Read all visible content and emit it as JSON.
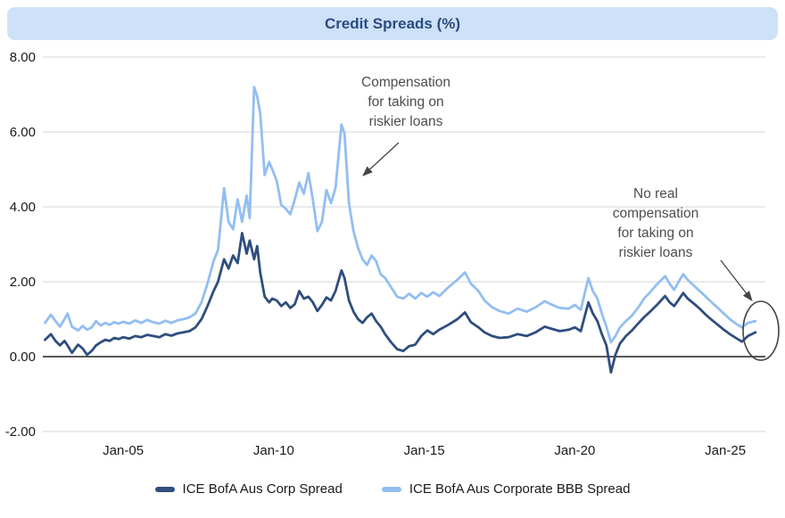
{
  "title": "Credit Spreads (%)",
  "colors": {
    "title_bg": "#CDE1F9",
    "title_text": "#2B4A7D",
    "corp_line": "#2F4E7E",
    "bbb_line": "#92BEF2",
    "gridline": "#D6D6D6",
    "zero_axis": "#3F3F3F",
    "tick_text": "#1A1A1A",
    "annotation_text": "#4D4D4D",
    "annotation_shape": "#454545"
  },
  "legend": [
    {
      "label": "ICE BofA Aus Corp Spread",
      "color_key": "corp_line"
    },
    {
      "label": "ICE BofA Aus Corporate BBB Spread",
      "color_key": "bbb_line"
    }
  ],
  "annotations": [
    {
      "name": "compensation-note",
      "lines": [
        "Compensation",
        "for taking on",
        "riskier loans"
      ]
    },
    {
      "name": "no-compensation-note",
      "lines": [
        "No real",
        "compensation",
        "for taking on",
        "riskier loans"
      ]
    }
  ],
  "chart_data": {
    "type": "line",
    "title": "Credit Spreads (%)",
    "xlabel": "",
    "ylabel": "",
    "grid": "horizontal",
    "x_domain": [
      2002.33,
      2026.33
    ],
    "ylim": [
      -2,
      8
    ],
    "yticks": [
      8,
      6,
      4,
      2,
      0,
      -2
    ],
    "xticks": [
      {
        "label": "Jan-05",
        "x": 2005
      },
      {
        "label": "Jan-10",
        "x": 2010
      },
      {
        "label": "Jan-15",
        "x": 2015
      },
      {
        "label": "Jan-20",
        "x": 2020
      },
      {
        "label": "Jan-25",
        "x": 2025
      }
    ],
    "legend_position": "bottom",
    "series": [
      {
        "name": "ICE BofA Aus Corp Spread",
        "color": "#2F4E7E",
        "points": [
          [
            2002.4,
            0.45
          ],
          [
            2002.6,
            0.6
          ],
          [
            2002.75,
            0.42
          ],
          [
            2002.9,
            0.3
          ],
          [
            2003.05,
            0.42
          ],
          [
            2003.15,
            0.3
          ],
          [
            2003.3,
            0.1
          ],
          [
            2003.5,
            0.32
          ],
          [
            2003.65,
            0.22
          ],
          [
            2003.8,
            0.05
          ],
          [
            2003.95,
            0.15
          ],
          [
            2004.1,
            0.3
          ],
          [
            2004.25,
            0.38
          ],
          [
            2004.4,
            0.45
          ],
          [
            2004.55,
            0.42
          ],
          [
            2004.7,
            0.5
          ],
          [
            2004.85,
            0.47
          ],
          [
            2005.0,
            0.52
          ],
          [
            2005.2,
            0.48
          ],
          [
            2005.4,
            0.55
          ],
          [
            2005.6,
            0.52
          ],
          [
            2005.8,
            0.58
          ],
          [
            2006.0,
            0.55
          ],
          [
            2006.2,
            0.52
          ],
          [
            2006.4,
            0.6
          ],
          [
            2006.6,
            0.56
          ],
          [
            2006.8,
            0.62
          ],
          [
            2007.0,
            0.65
          ],
          [
            2007.2,
            0.68
          ],
          [
            2007.4,
            0.78
          ],
          [
            2007.6,
            1.0
          ],
          [
            2007.8,
            1.35
          ],
          [
            2008.0,
            1.75
          ],
          [
            2008.15,
            2.0
          ],
          [
            2008.35,
            2.6
          ],
          [
            2008.5,
            2.35
          ],
          [
            2008.65,
            2.7
          ],
          [
            2008.8,
            2.5
          ],
          [
            2008.95,
            3.3
          ],
          [
            2009.1,
            2.75
          ],
          [
            2009.2,
            3.1
          ],
          [
            2009.35,
            2.6
          ],
          [
            2009.45,
            2.95
          ],
          [
            2009.55,
            2.25
          ],
          [
            2009.7,
            1.6
          ],
          [
            2009.85,
            1.45
          ],
          [
            2009.95,
            1.55
          ],
          [
            2010.1,
            1.5
          ],
          [
            2010.25,
            1.35
          ],
          [
            2010.4,
            1.45
          ],
          [
            2010.55,
            1.3
          ],
          [
            2010.7,
            1.4
          ],
          [
            2010.85,
            1.75
          ],
          [
            2011.0,
            1.55
          ],
          [
            2011.15,
            1.6
          ],
          [
            2011.3,
            1.45
          ],
          [
            2011.45,
            1.22
          ],
          [
            2011.6,
            1.38
          ],
          [
            2011.75,
            1.58
          ],
          [
            2011.9,
            1.5
          ],
          [
            2012.05,
            1.75
          ],
          [
            2012.25,
            2.3
          ],
          [
            2012.35,
            2.1
          ],
          [
            2012.5,
            1.5
          ],
          [
            2012.65,
            1.2
          ],
          [
            2012.8,
            1.0
          ],
          [
            2012.95,
            0.9
          ],
          [
            2013.1,
            1.05
          ],
          [
            2013.25,
            1.15
          ],
          [
            2013.4,
            0.95
          ],
          [
            2013.55,
            0.8
          ],
          [
            2013.7,
            0.6
          ],
          [
            2013.9,
            0.38
          ],
          [
            2014.1,
            0.2
          ],
          [
            2014.3,
            0.15
          ],
          [
            2014.5,
            0.28
          ],
          [
            2014.7,
            0.32
          ],
          [
            2014.9,
            0.55
          ],
          [
            2015.1,
            0.7
          ],
          [
            2015.3,
            0.6
          ],
          [
            2015.5,
            0.72
          ],
          [
            2015.8,
            0.85
          ],
          [
            2016.1,
            1.0
          ],
          [
            2016.35,
            1.18
          ],
          [
            2016.55,
            0.92
          ],
          [
            2016.8,
            0.78
          ],
          [
            2017.0,
            0.65
          ],
          [
            2017.25,
            0.55
          ],
          [
            2017.5,
            0.5
          ],
          [
            2017.8,
            0.52
          ],
          [
            2018.1,
            0.6
          ],
          [
            2018.4,
            0.55
          ],
          [
            2018.7,
            0.65
          ],
          [
            2019.0,
            0.8
          ],
          [
            2019.2,
            0.75
          ],
          [
            2019.5,
            0.68
          ],
          [
            2019.8,
            0.72
          ],
          [
            2020.0,
            0.78
          ],
          [
            2020.2,
            0.68
          ],
          [
            2020.45,
            1.45
          ],
          [
            2020.6,
            1.15
          ],
          [
            2020.75,
            0.95
          ],
          [
            2020.9,
            0.6
          ],
          [
            2021.05,
            0.3
          ],
          [
            2021.2,
            -0.42
          ],
          [
            2021.35,
            0.05
          ],
          [
            2021.5,
            0.35
          ],
          [
            2021.7,
            0.55
          ],
          [
            2021.9,
            0.7
          ],
          [
            2022.1,
            0.88
          ],
          [
            2022.3,
            1.05
          ],
          [
            2022.5,
            1.2
          ],
          [
            2022.75,
            1.4
          ],
          [
            2023.0,
            1.62
          ],
          [
            2023.15,
            1.45
          ],
          [
            2023.3,
            1.35
          ],
          [
            2023.45,
            1.52
          ],
          [
            2023.6,
            1.7
          ],
          [
            2023.75,
            1.55
          ],
          [
            2023.95,
            1.42
          ],
          [
            2024.15,
            1.28
          ],
          [
            2024.35,
            1.12
          ],
          [
            2024.55,
            0.98
          ],
          [
            2024.75,
            0.85
          ],
          [
            2024.95,
            0.72
          ],
          [
            2025.15,
            0.6
          ],
          [
            2025.35,
            0.5
          ],
          [
            2025.55,
            0.4
          ],
          [
            2025.75,
            0.55
          ],
          [
            2026.0,
            0.65
          ]
        ]
      },
      {
        "name": "ICE BofA Aus Corporate BBB Spread",
        "color": "#92BEF2",
        "points": [
          [
            2002.4,
            0.9
          ],
          [
            2002.6,
            1.12
          ],
          [
            2002.75,
            0.95
          ],
          [
            2002.9,
            0.8
          ],
          [
            2003.05,
            1.0
          ],
          [
            2003.15,
            1.15
          ],
          [
            2003.3,
            0.8
          ],
          [
            2003.5,
            0.7
          ],
          [
            2003.65,
            0.82
          ],
          [
            2003.8,
            0.72
          ],
          [
            2003.95,
            0.78
          ],
          [
            2004.1,
            0.95
          ],
          [
            2004.25,
            0.83
          ],
          [
            2004.4,
            0.9
          ],
          [
            2004.55,
            0.85
          ],
          [
            2004.7,
            0.92
          ],
          [
            2004.85,
            0.88
          ],
          [
            2005.0,
            0.93
          ],
          [
            2005.2,
            0.88
          ],
          [
            2005.4,
            0.97
          ],
          [
            2005.6,
            0.9
          ],
          [
            2005.8,
            0.98
          ],
          [
            2006.0,
            0.92
          ],
          [
            2006.2,
            0.88
          ],
          [
            2006.4,
            0.96
          ],
          [
            2006.6,
            0.9
          ],
          [
            2006.8,
            0.97
          ],
          [
            2007.0,
            1.0
          ],
          [
            2007.2,
            1.05
          ],
          [
            2007.4,
            1.15
          ],
          [
            2007.6,
            1.45
          ],
          [
            2007.8,
            1.95
          ],
          [
            2008.0,
            2.55
          ],
          [
            2008.15,
            2.85
          ],
          [
            2008.35,
            4.5
          ],
          [
            2008.5,
            3.6
          ],
          [
            2008.65,
            3.4
          ],
          [
            2008.8,
            4.2
          ],
          [
            2008.95,
            3.6
          ],
          [
            2009.1,
            4.3
          ],
          [
            2009.2,
            3.7
          ],
          [
            2009.35,
            7.2
          ],
          [
            2009.45,
            6.95
          ],
          [
            2009.55,
            6.5
          ],
          [
            2009.7,
            4.85
          ],
          [
            2009.85,
            5.2
          ],
          [
            2009.95,
            5.0
          ],
          [
            2010.1,
            4.7
          ],
          [
            2010.25,
            4.05
          ],
          [
            2010.4,
            3.95
          ],
          [
            2010.55,
            3.8
          ],
          [
            2010.7,
            4.2
          ],
          [
            2010.85,
            4.65
          ],
          [
            2011.0,
            4.35
          ],
          [
            2011.15,
            4.9
          ],
          [
            2011.3,
            4.2
          ],
          [
            2011.45,
            3.35
          ],
          [
            2011.6,
            3.6
          ],
          [
            2011.75,
            4.45
          ],
          [
            2011.9,
            4.1
          ],
          [
            2012.05,
            4.5
          ],
          [
            2012.25,
            6.2
          ],
          [
            2012.35,
            5.95
          ],
          [
            2012.5,
            4.1
          ],
          [
            2012.65,
            3.35
          ],
          [
            2012.8,
            2.9
          ],
          [
            2012.95,
            2.6
          ],
          [
            2013.1,
            2.45
          ],
          [
            2013.25,
            2.7
          ],
          [
            2013.4,
            2.55
          ],
          [
            2013.55,
            2.2
          ],
          [
            2013.7,
            2.1
          ],
          [
            2013.9,
            1.85
          ],
          [
            2014.1,
            1.6
          ],
          [
            2014.3,
            1.55
          ],
          [
            2014.5,
            1.68
          ],
          [
            2014.7,
            1.55
          ],
          [
            2014.9,
            1.7
          ],
          [
            2015.1,
            1.6
          ],
          [
            2015.3,
            1.72
          ],
          [
            2015.5,
            1.62
          ],
          [
            2015.8,
            1.85
          ],
          [
            2016.1,
            2.05
          ],
          [
            2016.35,
            2.25
          ],
          [
            2016.55,
            1.95
          ],
          [
            2016.8,
            1.75
          ],
          [
            2017.0,
            1.5
          ],
          [
            2017.25,
            1.32
          ],
          [
            2017.5,
            1.22
          ],
          [
            2017.8,
            1.15
          ],
          [
            2018.1,
            1.28
          ],
          [
            2018.4,
            1.2
          ],
          [
            2018.7,
            1.32
          ],
          [
            2019.0,
            1.48
          ],
          [
            2019.2,
            1.4
          ],
          [
            2019.5,
            1.3
          ],
          [
            2019.8,
            1.28
          ],
          [
            2020.0,
            1.38
          ],
          [
            2020.2,
            1.25
          ],
          [
            2020.45,
            2.1
          ],
          [
            2020.6,
            1.75
          ],
          [
            2020.75,
            1.55
          ],
          [
            2020.9,
            1.15
          ],
          [
            2021.05,
            0.8
          ],
          [
            2021.2,
            0.38
          ],
          [
            2021.35,
            0.55
          ],
          [
            2021.5,
            0.78
          ],
          [
            2021.7,
            0.95
          ],
          [
            2021.9,
            1.1
          ],
          [
            2022.1,
            1.3
          ],
          [
            2022.3,
            1.55
          ],
          [
            2022.5,
            1.72
          ],
          [
            2022.75,
            1.95
          ],
          [
            2023.0,
            2.15
          ],
          [
            2023.15,
            1.95
          ],
          [
            2023.3,
            1.78
          ],
          [
            2023.45,
            2.0
          ],
          [
            2023.6,
            2.2
          ],
          [
            2023.75,
            2.05
          ],
          [
            2023.95,
            1.9
          ],
          [
            2024.15,
            1.75
          ],
          [
            2024.35,
            1.6
          ],
          [
            2024.55,
            1.45
          ],
          [
            2024.75,
            1.3
          ],
          [
            2024.95,
            1.15
          ],
          [
            2025.15,
            1.0
          ],
          [
            2025.35,
            0.88
          ],
          [
            2025.55,
            0.78
          ],
          [
            2025.75,
            0.9
          ],
          [
            2026.0,
            0.95
          ]
        ]
      }
    ]
  }
}
